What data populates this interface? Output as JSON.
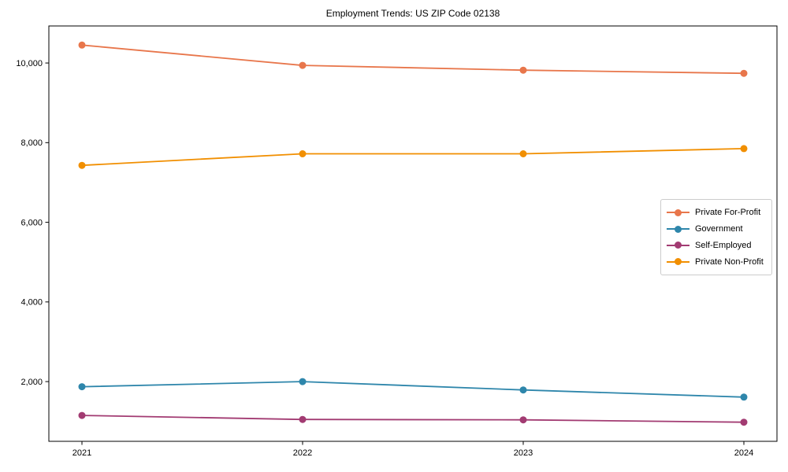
{
  "chart_data": {
    "type": "line",
    "title": "Employment Trends: US ZIP Code 02138",
    "xlabel": "",
    "ylabel": "",
    "x": [
      2021,
      2022,
      2023,
      2024
    ],
    "x_tick_labels": [
      "2021",
      "2022",
      "2023",
      "2024"
    ],
    "y_ticks": [
      2000,
      4000,
      6000,
      8000,
      10000
    ],
    "y_tick_labels": [
      "2,000",
      "4,000",
      "6,000",
      "8,000",
      "10,000"
    ],
    "xlim": [
      2020.85,
      2024.15
    ],
    "ylim": [
      500,
      10930
    ],
    "grid": false,
    "legend_position": "center right",
    "marker": "circle",
    "series": [
      {
        "name": "Private For-Profit",
        "color": "#E8764B",
        "values": [
          10450,
          9940,
          9820,
          9740
        ]
      },
      {
        "name": "Government",
        "color": "#2E86AB",
        "values": [
          1870,
          2000,
          1790,
          1610
        ]
      },
      {
        "name": "Self-Employed",
        "color": "#A23B72",
        "values": [
          1150,
          1050,
          1040,
          980
        ]
      },
      {
        "name": "Private Non-Profit",
        "color": "#F18F01",
        "values": [
          7430,
          7720,
          7720,
          7850
        ]
      }
    ]
  }
}
